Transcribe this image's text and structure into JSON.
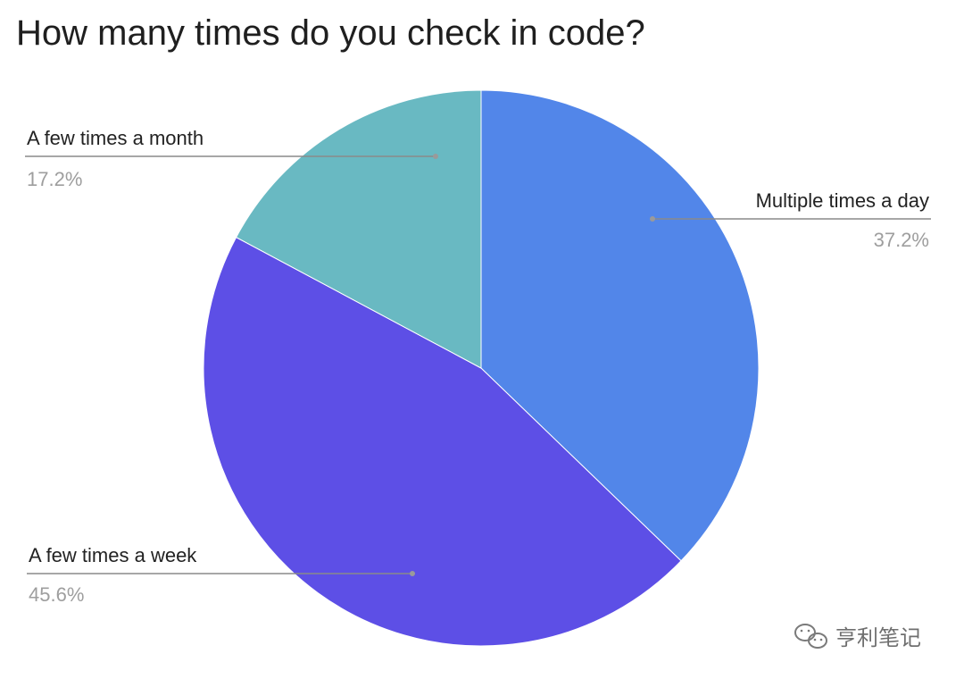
{
  "chart_data": {
    "type": "pie",
    "title": "How many times do you check in code?",
    "categories": [
      "Multiple times a day",
      "A few times a week",
      "A few times a month"
    ],
    "values": [
      37.2,
      45.6,
      17.2
    ],
    "value_labels": [
      "37.2%",
      "45.6%",
      "17.2%"
    ],
    "colors": [
      "#5286e9",
      "#5d4fe6",
      "#69b9c2"
    ],
    "start": "12 o'clock",
    "direction": "clockwise",
    "legend": "none (leader-line labels)"
  },
  "watermark": {
    "text": "亨利笔记",
    "icon": "wechat-icon"
  }
}
